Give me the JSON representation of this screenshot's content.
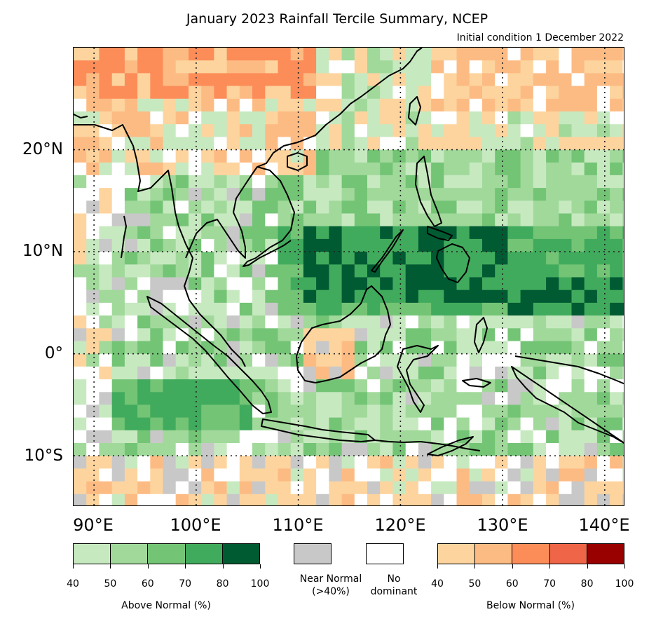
{
  "title": "January 2023 Rainfall Tercile Summary, NCEP",
  "subtitle": "Initial condition 1 December 2022",
  "lat_labels": [
    "20°N",
    "10°N",
    "0°",
    "10°S"
  ],
  "lon_labels": [
    "90°E",
    "100°E",
    "110°E",
    "120°E",
    "130°E",
    "140°E"
  ],
  "legend": {
    "above_normal": {
      "label": "Above Normal (%)",
      "ticks": [
        "40",
        "50",
        "60",
        "70",
        "80",
        "100"
      ],
      "colors": [
        "#c7e9c0",
        "#a1d99b",
        "#74c476",
        "#41ab5d",
        "#005a32"
      ]
    },
    "near_normal": {
      "label": "Near Normal\n(>40%)",
      "color": "#c8c8c8"
    },
    "no_dominant": {
      "label": "No\ndominant",
      "color": "#ffffff"
    },
    "below_normal": {
      "label": "Below Normal (%)",
      "ticks": [
        "40",
        "50",
        "60",
        "70",
        "80",
        "100"
      ],
      "colors": [
        "#fdd49e",
        "#fdbb84",
        "#fc8d59",
        "#ef6548",
        "#990000"
      ]
    }
  },
  "map_data": {
    "lon_range": [
      88,
      142
    ],
    "lat_range": [
      -15,
      30
    ],
    "grid_lon": [
      90,
      100,
      110,
      120,
      130,
      140
    ],
    "grid_lat": [
      20,
      10,
      0,
      -10
    ],
    "category_colors": {
      "A1": "#c7e9c0",
      "A2": "#a1d99b",
      "A3": "#74c476",
      "A4": "#41ab5d",
      "A5": "#005a32",
      "B1": "#fdd49e",
      "B2": "#fdbb84",
      "B3": "#fc8d59",
      "B4": "#ef6548",
      "B5": "#990000",
      "N": "#c8c8c8",
      "W": "#ffffff"
    }
  }
}
